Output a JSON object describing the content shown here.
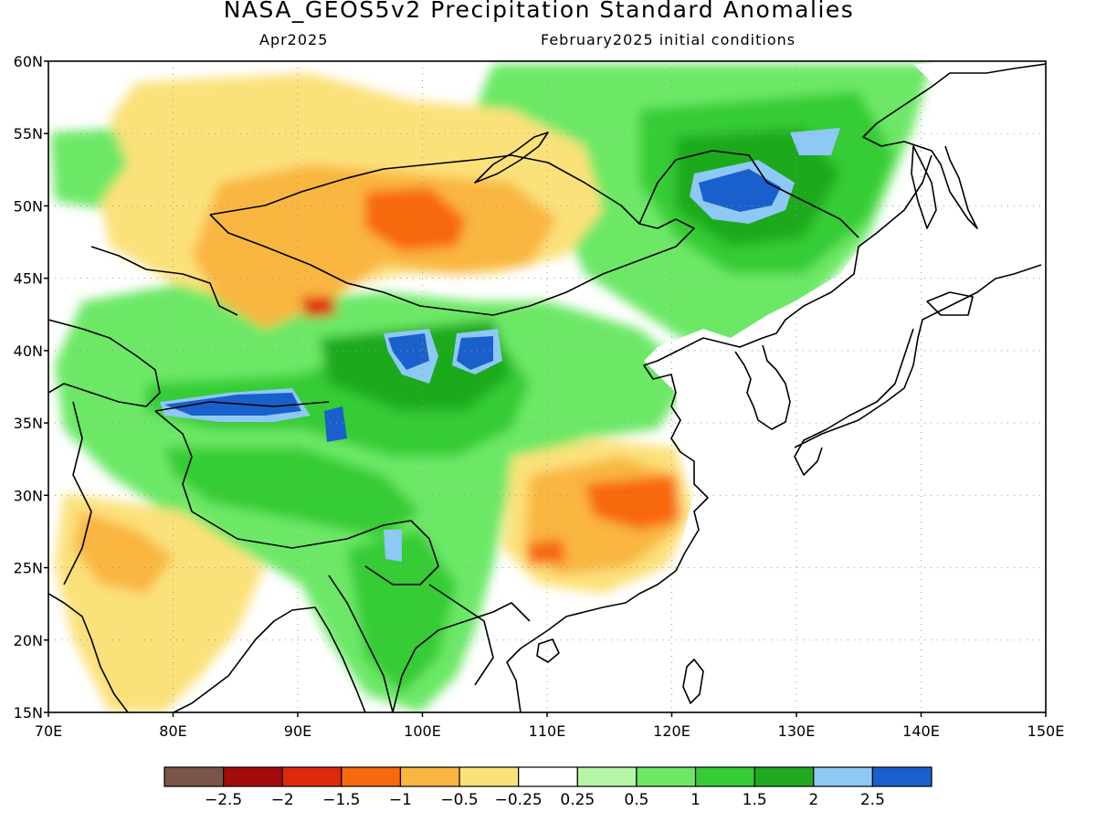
{
  "title": "NASA_GEOS5v2 Precipitation Standard Anomalies",
  "subtitle_left": "Apr2025",
  "subtitle_right": "February2025 initial conditions",
  "lat_labels": [
    "60N",
    "55N",
    "50N",
    "45N",
    "40N",
    "35N",
    "30N",
    "25N",
    "20N",
    "15N"
  ],
  "lon_labels": [
    "70E",
    "80E",
    "90E",
    "100E",
    "110E",
    "120E",
    "130E",
    "140E",
    "150E"
  ],
  "extent": {
    "lon_min": 70,
    "lon_max": 150,
    "lat_min": 15,
    "lat_max": 60
  },
  "colorbar": {
    "colors": [
      "#7a5548",
      "#a30c0c",
      "#de2a0c",
      "#f8680e",
      "#f9b640",
      "#fbe17a",
      "#ffffff",
      "#b6f5a6",
      "#6ce866",
      "#36cc36",
      "#1faa1f",
      "#8ec8f4",
      "#1a60cc"
    ],
    "labels": [
      "-2.5",
      "-2",
      "-1.5",
      "-1",
      "-0.5",
      "-0.25",
      "0.25",
      "0.5",
      "1",
      "1.5",
      "2",
      "2.5"
    ]
  },
  "colors": {
    "ocean": "#ffffff",
    "coastline": "#000000",
    "grid": "#9a9a9a"
  }
}
